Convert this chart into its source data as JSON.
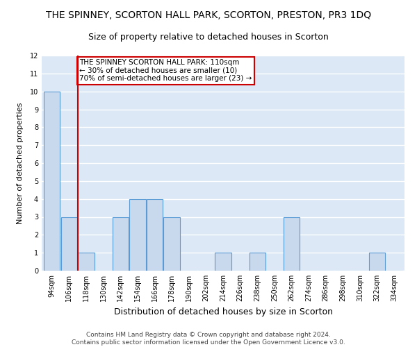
{
  "title": "THE SPINNEY, SCORTON HALL PARK, SCORTON, PRESTON, PR3 1DQ",
  "subtitle": "Size of property relative to detached houses in Scorton",
  "xlabel": "Distribution of detached houses by size in Scorton",
  "ylabel": "Number of detached properties",
  "categories": [
    "94sqm",
    "106sqm",
    "118sqm",
    "130sqm",
    "142sqm",
    "154sqm",
    "166sqm",
    "178sqm",
    "190sqm",
    "202sqm",
    "214sqm",
    "226sqm",
    "238sqm",
    "250sqm",
    "262sqm",
    "274sqm",
    "286sqm",
    "298sqm",
    "310sqm",
    "322sqm",
    "334sqm"
  ],
  "values": [
    10,
    3,
    1,
    0,
    3,
    4,
    4,
    3,
    0,
    0,
    1,
    0,
    1,
    0,
    3,
    0,
    0,
    0,
    0,
    1,
    0
  ],
  "bar_color": "#c9d9ed",
  "bar_edge_color": "#5b9bd5",
  "ylim": [
    0,
    12
  ],
  "yticks": [
    0,
    1,
    2,
    3,
    4,
    5,
    6,
    7,
    8,
    9,
    10,
    11,
    12
  ],
  "red_line_x": 1.5,
  "annotation_text": "THE SPINNEY SCORTON HALL PARK: 110sqm\n← 30% of detached houses are smaller (10)\n70% of semi-detached houses are larger (23) →",
  "annotation_box_color": "#ffffff",
  "annotation_box_edge": "#cc0000",
  "red_line_color": "#cc0000",
  "background_color": "#ffffff",
  "plot_bg_color": "#dce8f5",
  "grid_color": "#ffffff",
  "footer_text": "Contains HM Land Registry data © Crown copyright and database right 2024.\nContains public sector information licensed under the Open Government Licence v3.0.",
  "title_fontsize": 10,
  "subtitle_fontsize": 9,
  "xlabel_fontsize": 9,
  "ylabel_fontsize": 8,
  "tick_fontsize": 7,
  "footer_fontsize": 6.5,
  "annot_fontsize": 7.5
}
